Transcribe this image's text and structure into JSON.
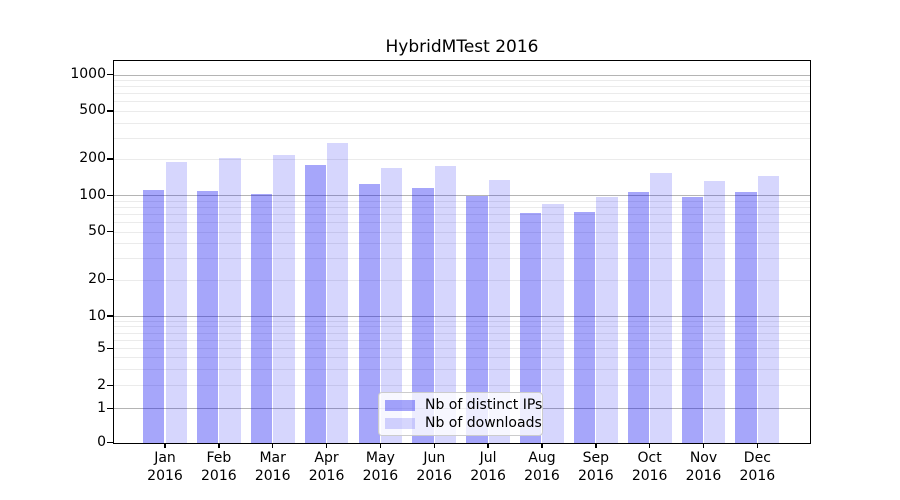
{
  "page": {
    "background": "#ffffff"
  },
  "chart_data": {
    "type": "bar",
    "title": "HybridMTest 2016",
    "categories": [
      "Jan 2016",
      "Feb 2016",
      "Mar 2016",
      "Apr 2016",
      "May 2016",
      "Jun 2016",
      "Jul 2016",
      "Aug 2016",
      "Sep 2016",
      "Oct 2016",
      "Nov 2016",
      "Dec 2016"
    ],
    "series": [
      {
        "name": "Nb of distinct IPs",
        "color": "rgba(0,0,240,0.35)",
        "values": [
          110,
          108,
          102,
          178,
          123,
          116,
          99,
          72,
          73,
          107,
          96,
          107
        ]
      },
      {
        "name": "Nb of downloads",
        "color": "rgba(0,0,240,0.16)",
        "values": [
          190,
          205,
          216,
          272,
          167,
          176,
          134,
          84,
          96,
          154,
          131,
          145
        ]
      }
    ],
    "xlabel": "",
    "ylabel": "",
    "y_scale": "symlog",
    "y_ticks": [
      0,
      1,
      2,
      5,
      10,
      20,
      50,
      100,
      200,
      500,
      1000
    ],
    "ylim": [
      0,
      1300
    ],
    "grid": true,
    "legend_position": "lower center",
    "colors": {
      "major_grid": "#b4b4b4",
      "minor_grid": "#ebebeb",
      "axis": "#000000",
      "legend_border": "#cccccc"
    }
  }
}
